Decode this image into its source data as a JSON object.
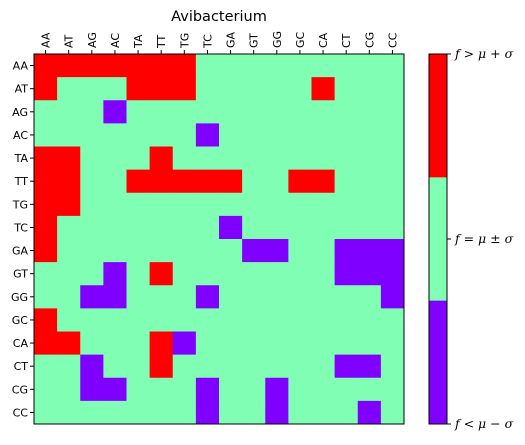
{
  "chart_data": {
    "type": "heatmap",
    "title": "Avibacterium",
    "x_labels": [
      "AA",
      "AT",
      "AG",
      "AC",
      "TA",
      "TT",
      "TG",
      "TC",
      "GA",
      "GT",
      "GG",
      "GC",
      "CA",
      "CT",
      "CG",
      "CC"
    ],
    "y_labels": [
      "AA",
      "AT",
      "AG",
      "AC",
      "TA",
      "TT",
      "TG",
      "TC",
      "GA",
      "GT",
      "GG",
      "GC",
      "CA",
      "CT",
      "CG",
      "CC"
    ],
    "category_codes": {
      "-1": "f < μ − σ",
      "0": "f = μ ± σ",
      "1": "f > μ + σ"
    },
    "values": [
      [
        1,
        1,
        1,
        1,
        1,
        1,
        1,
        0,
        0,
        0,
        0,
        0,
        0,
        0,
        0,
        0
      ],
      [
        1,
        0,
        0,
        0,
        1,
        1,
        1,
        0,
        0,
        0,
        0,
        0,
        1,
        0,
        0,
        0
      ],
      [
        0,
        0,
        0,
        -1,
        0,
        0,
        0,
        0,
        0,
        0,
        0,
        0,
        0,
        0,
        0,
        0
      ],
      [
        0,
        0,
        0,
        0,
        0,
        0,
        0,
        -1,
        0,
        0,
        0,
        0,
        0,
        0,
        0,
        0
      ],
      [
        1,
        1,
        0,
        0,
        0,
        1,
        0,
        0,
        0,
        0,
        0,
        0,
        0,
        0,
        0,
        0
      ],
      [
        1,
        1,
        0,
        0,
        1,
        1,
        1,
        1,
        1,
        0,
        0,
        1,
        1,
        0,
        0,
        0
      ],
      [
        1,
        1,
        0,
        0,
        0,
        0,
        0,
        0,
        0,
        0,
        0,
        0,
        0,
        0,
        0,
        0
      ],
      [
        1,
        0,
        0,
        0,
        0,
        0,
        0,
        0,
        -1,
        0,
        0,
        0,
        0,
        0,
        0,
        0
      ],
      [
        1,
        0,
        0,
        0,
        0,
        0,
        0,
        0,
        0,
        -1,
        -1,
        0,
        0,
        -1,
        -1,
        -1
      ],
      [
        0,
        0,
        0,
        -1,
        0,
        1,
        0,
        0,
        0,
        0,
        0,
        0,
        0,
        -1,
        -1,
        -1
      ],
      [
        0,
        0,
        -1,
        -1,
        0,
        0,
        0,
        -1,
        0,
        0,
        0,
        0,
        0,
        0,
        0,
        -1
      ],
      [
        1,
        0,
        0,
        0,
        0,
        0,
        0,
        0,
        0,
        0,
        0,
        0,
        0,
        0,
        0,
        0
      ],
      [
        1,
        1,
        0,
        0,
        0,
        1,
        -1,
        0,
        0,
        0,
        0,
        0,
        0,
        0,
        0,
        0
      ],
      [
        0,
        0,
        -1,
        0,
        0,
        1,
        0,
        0,
        0,
        0,
        0,
        0,
        0,
        -1,
        -1,
        0
      ],
      [
        0,
        0,
        -1,
        -1,
        0,
        0,
        0,
        -1,
        0,
        0,
        -1,
        0,
        0,
        0,
        0,
        0
      ],
      [
        0,
        0,
        0,
        0,
        0,
        0,
        0,
        -1,
        0,
        0,
        -1,
        0,
        0,
        0,
        -1,
        0
      ]
    ],
    "colors": {
      "-1": "#8000ff",
      "0": "#80ffb4",
      "1": "#ff0000"
    },
    "colorbar": {
      "ticks": [
        "f < μ − σ",
        "f = μ ± σ",
        "f > μ + σ"
      ]
    },
    "grid": false
  }
}
